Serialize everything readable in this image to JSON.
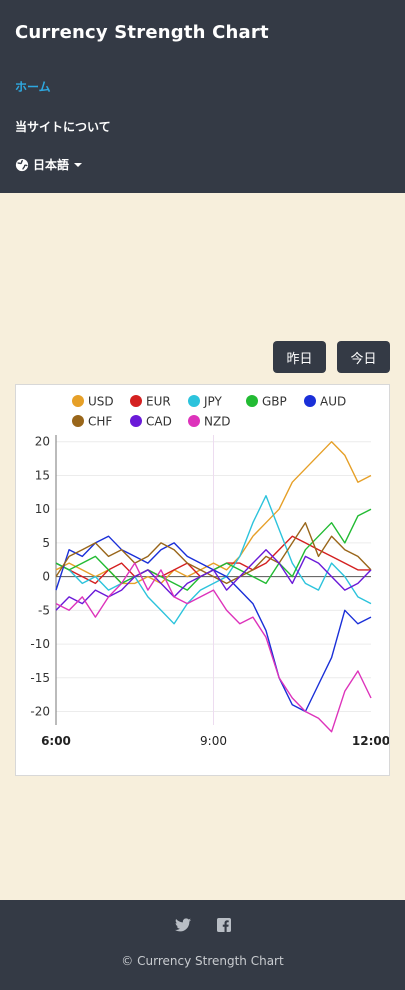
{
  "header": {
    "brand": "Currency Strength Chart",
    "nav": {
      "home": "ホーム",
      "about": "当サイトについて",
      "language": "日本語"
    }
  },
  "buttons": {
    "yesterday": "昨日",
    "today": "今日"
  },
  "footer": {
    "copyright": "© Currency Strength Chart"
  },
  "colors": {
    "header_bg": "#343a45",
    "page_bg": "#f7efdc",
    "link": "#2ea8e0"
  },
  "chart_data": {
    "type": "line",
    "x": [
      "6:00",
      "6:15",
      "6:30",
      "6:45",
      "7:00",
      "7:15",
      "7:30",
      "7:45",
      "8:00",
      "8:15",
      "8:30",
      "8:45",
      "9:00",
      "9:15",
      "9:30",
      "9:45",
      "10:00",
      "10:15",
      "10:30",
      "10:45",
      "11:00",
      "11:15",
      "11:30",
      "11:45",
      "12:00"
    ],
    "xticks": [
      "6:00",
      "9:00",
      "12:00"
    ],
    "ylim": [
      -22,
      21
    ],
    "yticks": [
      20,
      15,
      10,
      5,
      0,
      -5,
      -10,
      -15,
      -20
    ],
    "series": [
      {
        "name": "USD",
        "color": "#e6a028",
        "values": [
          1,
          2,
          1,
          0,
          1,
          -1,
          -1,
          0,
          -1,
          1,
          0,
          1,
          2,
          1,
          3,
          6,
          8,
          10,
          14,
          16,
          18,
          20,
          18,
          14,
          15
        ]
      },
      {
        "name": "EUR",
        "color": "#d42020",
        "values": [
          2,
          1,
          0,
          -1,
          1,
          2,
          0,
          1,
          0,
          1,
          2,
          0,
          1,
          2,
          2,
          1,
          2,
          4,
          6,
          5,
          4,
          3,
          2,
          1,
          1
        ]
      },
      {
        "name": "JPY",
        "color": "#2cc3dc",
        "values": [
          2,
          1,
          -1,
          0,
          -2,
          -1,
          0,
          -3,
          -5,
          -7,
          -4,
          -2,
          -1,
          0,
          3,
          8,
          12,
          7,
          2,
          -1,
          -2,
          2,
          0,
          -3,
          -4
        ]
      },
      {
        "name": "GBP",
        "color": "#22bb33",
        "values": [
          2,
          1,
          2,
          3,
          1,
          -1,
          0,
          1,
          0,
          -1,
          -2,
          0,
          1,
          2,
          1,
          0,
          -1,
          2,
          0,
          4,
          6,
          8,
          5,
          9,
          10
        ]
      },
      {
        "name": "AUD",
        "color": "#1a2fd8",
        "values": [
          -2,
          4,
          3,
          5,
          6,
          4,
          3,
          2,
          4,
          5,
          3,
          2,
          1,
          0,
          -2,
          -4,
          -8,
          -15,
          -19,
          -20,
          -16,
          -12,
          -5,
          -7,
          -6
        ]
      },
      {
        "name": "CHF",
        "color": "#99661a",
        "values": [
          0,
          3,
          4,
          5,
          3,
          4,
          2,
          3,
          5,
          4,
          2,
          1,
          0,
          -1,
          0,
          1,
          3,
          2,
          5,
          8,
          3,
          6,
          4,
          3,
          1
        ]
      },
      {
        "name": "CAD",
        "color": "#6a1ad8",
        "values": [
          -5,
          -3,
          -4,
          -2,
          -3,
          -2,
          0,
          1,
          -1,
          -3,
          -1,
          0,
          1,
          -2,
          0,
          2,
          4,
          2,
          -1,
          3,
          2,
          0,
          -2,
          -1,
          1
        ]
      },
      {
        "name": "NZD",
        "color": "#dd33bb",
        "values": [
          -4,
          -5,
          -3,
          -6,
          -3,
          -1,
          2,
          -2,
          1,
          -3,
          -4,
          -3,
          -2,
          -5,
          -7,
          -6,
          -9,
          -15,
          -18,
          -20,
          -21,
          -23,
          -17,
          -14,
          -18
        ]
      }
    ]
  }
}
